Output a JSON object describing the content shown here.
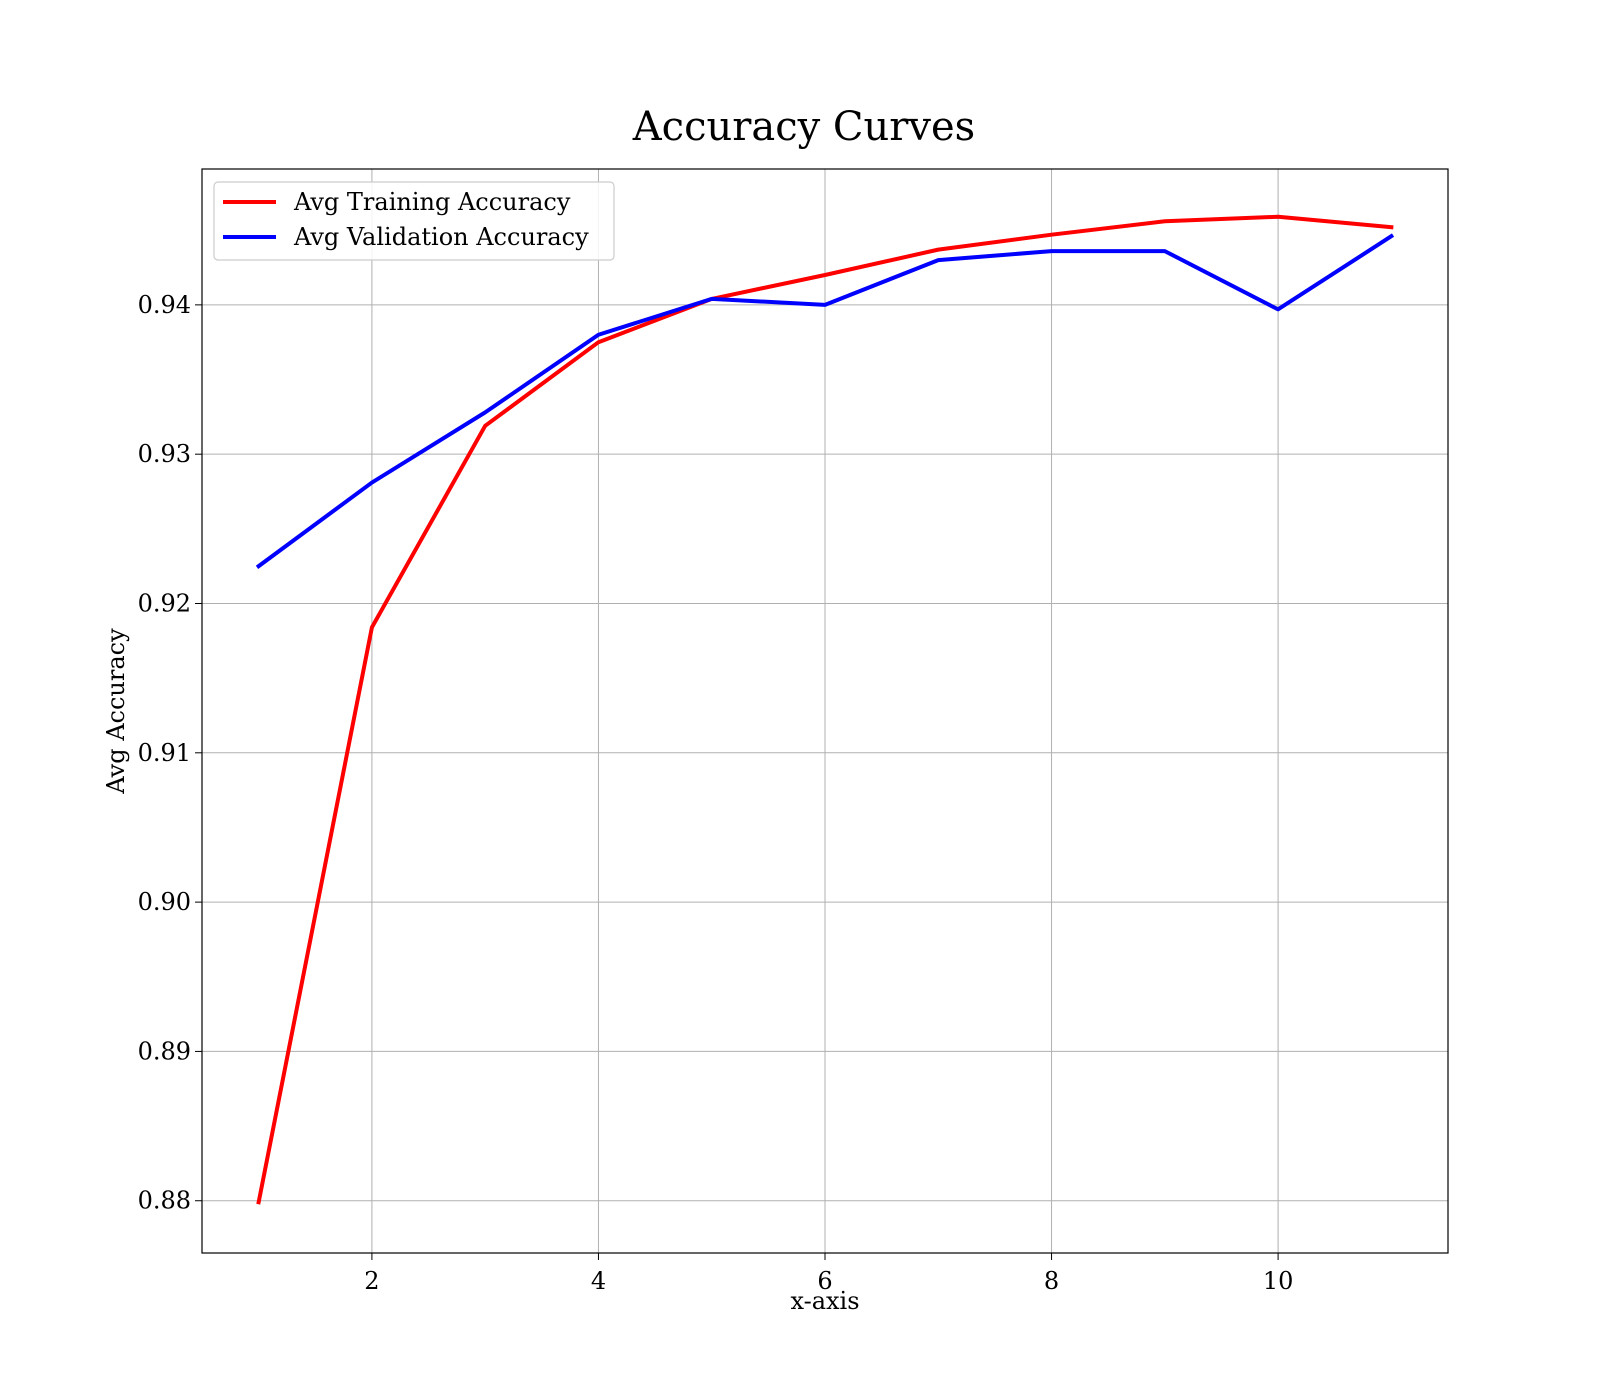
{
  "chart_data": {
    "type": "line",
    "title": "Accuracy Curves",
    "xlabel": "x-axis",
    "ylabel": "Avg Accuracy",
    "x": [
      1,
      2,
      3,
      4,
      5,
      6,
      7,
      8,
      9,
      10,
      11
    ],
    "xlim": [
      0.5,
      11.5
    ],
    "ylim": [
      0.8765,
      0.9491
    ],
    "xticks": [
      2,
      4,
      6,
      8,
      10
    ],
    "xtick_labels": [
      "2",
      "4",
      "6",
      "8",
      "10"
    ],
    "yticks": [
      0.88,
      0.89,
      0.9,
      0.91,
      0.92,
      0.93,
      0.94
    ],
    "ytick_labels": [
      "0.88",
      "0.89",
      "0.90",
      "0.91",
      "0.92",
      "0.93",
      "0.94"
    ],
    "grid": true,
    "legend_position": "top-left",
    "series": [
      {
        "name": "Avg Training Accuracy",
        "color": "#ff0000",
        "values": [
          0.8799,
          0.9184,
          0.9319,
          0.9375,
          0.9404,
          0.942,
          0.9437,
          0.9447,
          0.9456,
          0.9459,
          0.9452
        ]
      },
      {
        "name": "Avg Validation Accuracy",
        "color": "#0000ff",
        "values": [
          0.9225,
          0.9281,
          0.9328,
          0.938,
          0.9404,
          0.94,
          0.943,
          0.9436,
          0.9436,
          0.9397,
          0.9446
        ]
      }
    ]
  }
}
